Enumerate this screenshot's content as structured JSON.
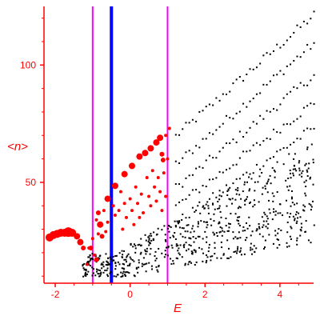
{
  "chart_data": {
    "type": "scatter",
    "title": "",
    "xlabel": "E",
    "ylabel": "<n>",
    "xlim": [
      -2.3,
      4.9
    ],
    "ylim": [
      7,
      125
    ],
    "grid": false,
    "x_ticks": [
      -2,
      0,
      2,
      4
    ],
    "x_tick_labels": [
      "-2",
      "0",
      "2",
      "4"
    ],
    "y_ticks": [
      50,
      100
    ],
    "y_tick_labels": [
      "50",
      "100"
    ],
    "colors": {
      "axis": "#ff0000",
      "black_points": "#000000",
      "red_points": "#ff0000",
      "magenta_line": "#ff00ff",
      "blue_line": "#0000ff"
    },
    "vertical_lines": [
      {
        "x": -1.0,
        "color": "#ff00ff"
      },
      {
        "x": -0.5,
        "color": "#0000ff"
      },
      {
        "x": 1.0,
        "color": "#ff00ff"
      }
    ],
    "series": [
      {
        "marker": "large-red",
        "color": "#ff0000",
        "points": [
          {
            "x": -2.15,
            "y": 26.5,
            "r": 5
          },
          {
            "x": -2.05,
            "y": 27.5,
            "r": 5
          },
          {
            "x": -1.95,
            "y": 28.0,
            "r": 5
          },
          {
            "x": -1.85,
            "y": 28.5,
            "r": 5
          },
          {
            "x": -1.75,
            "y": 28.5,
            "r": 5
          },
          {
            "x": -1.65,
            "y": 28.8,
            "r": 6
          },
          {
            "x": -1.55,
            "y": 28.5,
            "r": 5
          },
          {
            "x": -1.42,
            "y": 27.0,
            "r": 4
          },
          {
            "x": -1.33,
            "y": 24.5,
            "r": 4
          },
          {
            "x": -1.25,
            "y": 22.0,
            "r": 3
          },
          {
            "x": -0.85,
            "y": 37.0,
            "r": 3
          },
          {
            "x": -0.8,
            "y": 32.0,
            "r": 4
          },
          {
            "x": -0.75,
            "y": 27.0,
            "r": 3
          },
          {
            "x": -0.6,
            "y": 43.0,
            "r": 4
          },
          {
            "x": -0.4,
            "y": 48.5,
            "r": 4
          },
          {
            "x": -0.15,
            "y": 53.5,
            "r": 4
          },
          {
            "x": 0.05,
            "y": 57.0,
            "r": 4
          },
          {
            "x": 0.25,
            "y": 61.0,
            "r": 4
          },
          {
            "x": 0.4,
            "y": 62.5,
            "r": 4
          },
          {
            "x": 0.55,
            "y": 64.5,
            "r": 4
          },
          {
            "x": 0.7,
            "y": 67.0,
            "r": 4
          },
          {
            "x": 0.8,
            "y": 69.0,
            "r": 4
          },
          {
            "x": 0.85,
            "y": 62.0,
            "r": 3
          },
          {
            "x": 0.88,
            "y": 59.5,
            "r": 3
          },
          {
            "x": -1.05,
            "y": 22.0,
            "r": 3
          },
          {
            "x": -0.9,
            "y": 17.0,
            "r": 3
          }
        ]
      },
      {
        "marker": "small-red",
        "color": "#ff0000",
        "points": [
          {
            "x": -1.15,
            "y": 15,
            "r": 2
          },
          {
            "x": -1.1,
            "y": 22,
            "r": 2
          },
          {
            "x": -0.95,
            "y": 19,
            "r": 2
          },
          {
            "x": -0.9,
            "y": 34,
            "r": 2
          },
          {
            "x": -0.7,
            "y": 38,
            "r": 2
          },
          {
            "x": -0.65,
            "y": 29,
            "r": 2
          },
          {
            "x": -0.6,
            "y": 33,
            "r": 2
          },
          {
            "x": -0.45,
            "y": 40,
            "r": 2
          },
          {
            "x": -0.4,
            "y": 36,
            "r": 2
          },
          {
            "x": -0.3,
            "y": 38,
            "r": 2
          },
          {
            "x": -0.25,
            "y": 46,
            "r": 2
          },
          {
            "x": -0.15,
            "y": 41,
            "r": 2
          },
          {
            "x": -0.1,
            "y": 35,
            "r": 2
          },
          {
            "x": 0.0,
            "y": 43,
            "r": 2
          },
          {
            "x": 0.05,
            "y": 38,
            "r": 2
          },
          {
            "x": 0.1,
            "y": 32,
            "r": 2
          },
          {
            "x": 0.15,
            "y": 48,
            "r": 2
          },
          {
            "x": 0.2,
            "y": 41,
            "r": 2
          },
          {
            "x": 0.3,
            "y": 45,
            "r": 2
          },
          {
            "x": 0.35,
            "y": 37,
            "r": 2
          },
          {
            "x": 0.45,
            "y": 52,
            "r": 2
          },
          {
            "x": 0.5,
            "y": 44,
            "r": 2
          },
          {
            "x": 0.55,
            "y": 40,
            "r": 2
          },
          {
            "x": 0.6,
            "y": 55,
            "r": 2
          },
          {
            "x": 0.65,
            "y": 48,
            "r": 2
          },
          {
            "x": 0.7,
            "y": 42,
            "r": 2
          },
          {
            "x": 0.75,
            "y": 52,
            "r": 2
          },
          {
            "x": 0.8,
            "y": 46,
            "r": 2
          },
          {
            "x": 0.85,
            "y": 38,
            "r": 2
          },
          {
            "x": 0.9,
            "y": 54,
            "r": 2
          },
          {
            "x": 0.95,
            "y": 70,
            "r": 2
          },
          {
            "x": 0.95,
            "y": 44,
            "r": 2
          },
          {
            "x": 1.05,
            "y": 73,
            "r": 2
          },
          {
            "x": 1.0,
            "y": 60,
            "r": 2
          },
          {
            "x": -0.2,
            "y": 30,
            "r": 2
          },
          {
            "x": 0.25,
            "y": 35,
            "r": 2
          },
          {
            "x": -1.0,
            "y": 26,
            "r": 2
          },
          {
            "x": -0.85,
            "y": 28,
            "r": 2
          }
        ]
      }
    ],
    "black_cloud_note": ""
  }
}
